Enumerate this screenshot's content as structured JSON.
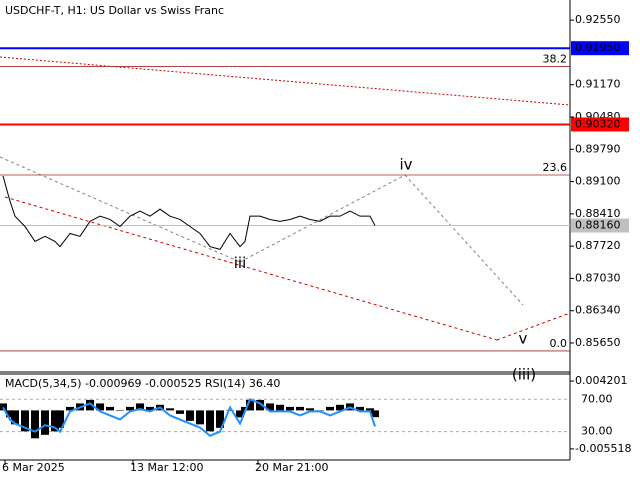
{
  "chart_data": [
    {
      "type": "line",
      "title": "USDCHF-T, H1:  US Dollar vs Swiss Franc",
      "x": [
        3,
        10,
        15,
        25,
        35,
        45,
        55,
        60,
        70,
        80,
        90,
        100,
        110,
        120,
        130,
        140,
        150,
        160,
        170,
        180,
        190,
        200,
        210,
        220,
        230,
        240,
        245,
        250,
        260,
        270,
        280,
        290,
        300,
        310,
        320,
        330,
        340,
        350,
        360,
        370,
        375
      ],
      "series": [
        {
          "name": "USDCHF-T",
          "color": "#000000",
          "values": [
            0.8922,
            0.8868,
            0.8836,
            0.8814,
            0.8782,
            0.8793,
            0.8782,
            0.8771,
            0.8799,
            0.8793,
            0.8825,
            0.8836,
            0.8829,
            0.8814,
            0.8836,
            0.8847,
            0.8836,
            0.8851,
            0.8836,
            0.8829,
            0.8814,
            0.8799,
            0.8771,
            0.8765,
            0.8799,
            0.8771,
            0.8782,
            0.8836,
            0.8836,
            0.8829,
            0.8825,
            0.8829,
            0.8836,
            0.8829,
            0.8825,
            0.8836,
            0.8836,
            0.8847,
            0.8836,
            0.8836,
            0.8816
          ]
        }
      ],
      "xlim": [
        0,
        570
      ],
      "xticks": [
        {
          "value": 5,
          "label": "6 Mar 2025"
        },
        {
          "value": 133,
          "label": "13 Mar 12:00"
        },
        {
          "value": 258,
          "label": "20 Mar 21:00"
        }
      ],
      "ylim": [
        0.8503,
        0.9298
      ],
      "yticks": [
        {
          "value": 0.9255,
          "label": "0.92550"
        },
        {
          "value": 0.9117,
          "label": "0.91170"
        },
        {
          "value": 0.9048,
          "label": "0.90480"
        },
        {
          "value": 0.8979,
          "label": "0.89790"
        },
        {
          "value": 0.891,
          "label": "0.89100"
        },
        {
          "value": 0.8841,
          "label": "0.88410"
        },
        {
          "value": 0.8772,
          "label": "0.87720"
        },
        {
          "value": 0.8703,
          "label": "0.87030"
        },
        {
          "value": 0.8634,
          "label": "0.86340"
        },
        {
          "value": 0.8565,
          "label": "0.85650"
        }
      ],
      "levels": [
        {
          "value": 0.9195,
          "label": "0.91950",
          "color": "#0000ff"
        },
        {
          "value": 0.9032,
          "label": "0.90320",
          "color": "#ff0000"
        },
        {
          "value": 0.8816,
          "label": "0.88160",
          "color": "#c0c0c0"
        }
      ],
      "fib_levels": [
        {
          "value": 0.9156,
          "label": "38.2"
        },
        {
          "value": 0.8924,
          "label": "23.6"
        },
        {
          "value": 0.8548,
          "label": "0.0"
        }
      ],
      "annotations": [
        {
          "text": "iv",
          "x": 406,
          "y": 0.8945,
          "color": "#808080"
        },
        {
          "text": "v",
          "x": 523,
          "y": 0.8574,
          "color": "#808080"
        },
        {
          "text": "iii",
          "x": 240,
          "y": 0.8735,
          "color": "#808080"
        },
        {
          "text": "(iii)",
          "x": 524,
          "y": 0.8497,
          "color": "#cc0000"
        }
      ]
    },
    {
      "type": "indicator",
      "title": "MACD(5,34,5) -0.000969 -0.000525 RSI(14) 36.40",
      "x": [
        3,
        10,
        15,
        25,
        35,
        45,
        55,
        60,
        70,
        80,
        90,
        100,
        110,
        120,
        130,
        140,
        150,
        160,
        170,
        180,
        190,
        200,
        210,
        220,
        230,
        240,
        245,
        250,
        260,
        270,
        280,
        290,
        300,
        310,
        320,
        330,
        340,
        350,
        360,
        370,
        375
      ],
      "series": [
        {
          "name": "MACD",
          "color": "#000000",
          "values": [
            0.001,
            -0.001,
            -0.002,
            -0.003,
            -0.004,
            -0.0035,
            -0.003,
            -0.0025,
            0.0005,
            0.001,
            0.0015,
            0.001,
            0.0005,
            0.0,
            0.0005,
            0.001,
            0.0005,
            0.0008,
            0.0003,
            -0.0005,
            -0.0015,
            -0.002,
            -0.003,
            -0.0025,
            0.0,
            -0.001,
            0.0005,
            0.0015,
            0.0015,
            0.001,
            0.0008,
            0.0005,
            0.0005,
            0.0003,
            0.0,
            0.0005,
            0.0008,
            0.001,
            0.0005,
            0.0003,
            -0.000969
          ]
        },
        {
          "name": "RSI",
          "color": "#1e90ff",
          "axis": "y2",
          "values": [
            60,
            45,
            40,
            35,
            30,
            38,
            35,
            30,
            55,
            60,
            65,
            55,
            50,
            45,
            55,
            58,
            55,
            60,
            50,
            45,
            40,
            35,
            25,
            30,
            60,
            40,
            55,
            70,
            65,
            55,
            55,
            55,
            50,
            55,
            55,
            50,
            55,
            60,
            55,
            55,
            36.4
          ]
        }
      ],
      "xlim": [
        0,
        570
      ],
      "ylim": [
        -0.00711,
        0.005216
      ],
      "yticks": [
        0.004201,
        -0.005518
      ],
      "y2lim": [
        -5,
        101.25
      ],
      "y2ticks": [
        {
          "value": 70,
          "label": "70.00"
        },
        {
          "value": 30,
          "label": "30.00"
        }
      ]
    }
  ]
}
